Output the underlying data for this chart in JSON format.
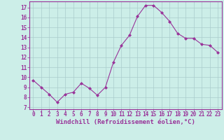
{
  "x": [
    0,
    1,
    2,
    3,
    4,
    5,
    6,
    7,
    8,
    9,
    10,
    11,
    12,
    13,
    14,
    15,
    16,
    17,
    18,
    19,
    20,
    21,
    22,
    23
  ],
  "y": [
    9.7,
    9.0,
    8.3,
    7.5,
    8.3,
    8.5,
    9.4,
    8.9,
    8.2,
    9.0,
    11.5,
    13.2,
    14.2,
    16.1,
    17.2,
    17.2,
    16.5,
    15.6,
    14.4,
    13.9,
    13.9,
    13.3,
    13.2,
    12.5
  ],
  "line_color": "#993399",
  "marker": "D",
  "markersize": 2,
  "linewidth": 0.8,
  "bg_color": "#cceee8",
  "grid_color": "#aacccc",
  "xlabel": "Windchill (Refroidissement éolien,°C)",
  "xlabel_color": "#993399",
  "xlabel_fontsize": 6.5,
  "ytick_labels": [
    "7",
    "8",
    "9",
    "10",
    "11",
    "12",
    "13",
    "14",
    "15",
    "16",
    "17"
  ],
  "ytick_values": [
    7,
    8,
    9,
    10,
    11,
    12,
    13,
    14,
    15,
    16,
    17
  ],
  "ylim": [
    6.8,
    17.6
  ],
  "xlim": [
    -0.5,
    23.5
  ],
  "tick_color": "#993399",
  "tick_fontsize": 5.5,
  "spine_color": "#993399"
}
